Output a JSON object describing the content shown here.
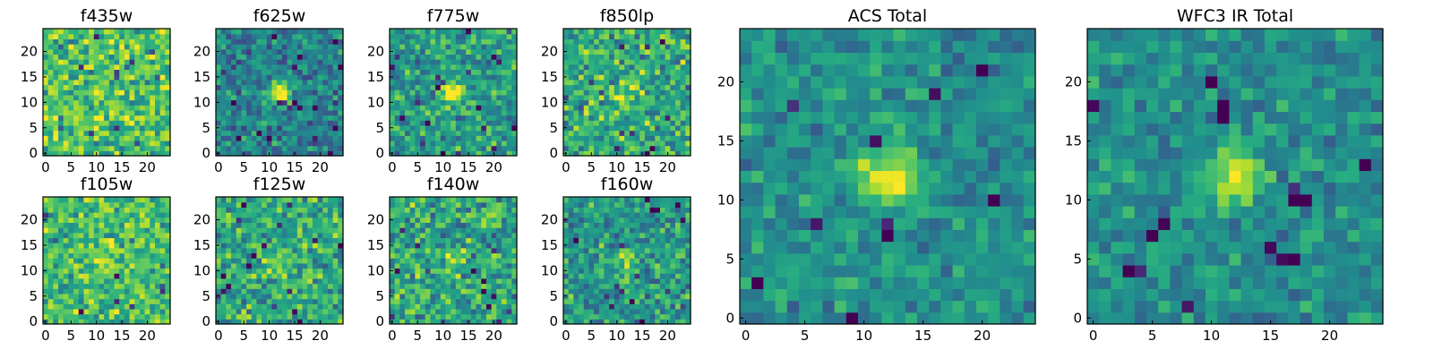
{
  "chart_data": [
    {
      "type": "heatmap",
      "title": "f435w",
      "grid_size": 25,
      "xlim": [
        0,
        25
      ],
      "ylim": [
        0,
        25
      ],
      "xticks": [
        0,
        5,
        10,
        15,
        20
      ],
      "yticks": [
        0,
        5,
        10,
        15,
        20
      ],
      "colormap": "viridis",
      "blob": {
        "x": 12.5,
        "y": 12.5,
        "strength": 0.0
      },
      "base_level": 0.72,
      "noise": 0.22,
      "seed": 11
    },
    {
      "type": "heatmap",
      "title": "f625w",
      "grid_size": 25,
      "xlim": [
        0,
        25
      ],
      "ylim": [
        0,
        25
      ],
      "xticks": [
        0,
        5,
        10,
        15,
        20
      ],
      "yticks": [
        0,
        5,
        10,
        15,
        20
      ],
      "colormap": "viridis",
      "blob": {
        "x": 12.5,
        "y": 12.5,
        "strength": 0.55
      },
      "base_level": 0.45,
      "noise": 0.18,
      "seed": 23
    },
    {
      "type": "heatmap",
      "title": "f775w",
      "grid_size": 25,
      "xlim": [
        0,
        25
      ],
      "ylim": [
        0,
        25
      ],
      "xticks": [
        0,
        5,
        10,
        15,
        20
      ],
      "yticks": [
        0,
        5,
        10,
        15,
        20
      ],
      "colormap": "viridis",
      "blob": {
        "x": 12.5,
        "y": 12.5,
        "strength": 0.5
      },
      "base_level": 0.55,
      "noise": 0.2,
      "seed": 37
    },
    {
      "type": "heatmap",
      "title": "f850lp",
      "grid_size": 25,
      "xlim": [
        0,
        25
      ],
      "ylim": [
        0,
        25
      ],
      "xticks": [
        0,
        5,
        10,
        15,
        20
      ],
      "yticks": [
        0,
        5,
        10,
        15,
        20
      ],
      "colormap": "viridis",
      "blob": {
        "x": 12.5,
        "y": 12.5,
        "strength": 0.25
      },
      "base_level": 0.62,
      "noise": 0.22,
      "seed": 41
    },
    {
      "type": "heatmap",
      "title": "f105w",
      "grid_size": 25,
      "xlim": [
        0,
        25
      ],
      "ylim": [
        0,
        25
      ],
      "xticks": [
        0,
        5,
        10,
        15,
        20
      ],
      "yticks": [
        0,
        5,
        10,
        15,
        20
      ],
      "colormap": "viridis",
      "blob": {
        "x": 12.5,
        "y": 12.5,
        "strength": 0.2
      },
      "base_level": 0.7,
      "noise": 0.2,
      "seed": 53
    },
    {
      "type": "heatmap",
      "title": "f125w",
      "grid_size": 25,
      "xlim": [
        0,
        25
      ],
      "ylim": [
        0,
        25
      ],
      "xticks": [
        0,
        5,
        10,
        15,
        20
      ],
      "yticks": [
        0,
        5,
        10,
        15,
        20
      ],
      "colormap": "viridis",
      "blob": {
        "x": 12.5,
        "y": 12.5,
        "strength": 0.3
      },
      "base_level": 0.62,
      "noise": 0.2,
      "seed": 67
    },
    {
      "type": "heatmap",
      "title": "f140w",
      "grid_size": 25,
      "xlim": [
        0,
        25
      ],
      "ylim": [
        0,
        25
      ],
      "xticks": [
        0,
        5,
        10,
        15,
        20
      ],
      "yticks": [
        0,
        5,
        10,
        15,
        20
      ],
      "colormap": "viridis",
      "blob": {
        "x": 12.5,
        "y": 12.5,
        "strength": 0.2
      },
      "base_level": 0.6,
      "noise": 0.22,
      "seed": 71
    },
    {
      "type": "heatmap",
      "title": "f160w",
      "grid_size": 25,
      "xlim": [
        0,
        25
      ],
      "ylim": [
        0,
        25
      ],
      "xticks": [
        0,
        5,
        10,
        15,
        20
      ],
      "yticks": [
        0,
        5,
        10,
        15,
        20
      ],
      "colormap": "viridis",
      "blob": {
        "x": 12.5,
        "y": 12.5,
        "strength": 0.25
      },
      "base_level": 0.55,
      "noise": 0.2,
      "seed": 83
    },
    {
      "type": "heatmap",
      "title": "ACS Total",
      "grid_size": 25,
      "xlim": [
        0,
        25
      ],
      "ylim": [
        0,
        25
      ],
      "xticks": [
        0,
        5,
        10,
        15,
        20
      ],
      "yticks": [
        0,
        5,
        10,
        15,
        20
      ],
      "colormap": "viridis",
      "blob": {
        "x": 12.5,
        "y": 12.5,
        "strength": 0.55
      },
      "base_level": 0.5,
      "noise": 0.14,
      "seed": 97
    },
    {
      "type": "heatmap",
      "title": "WFC3 IR Total",
      "grid_size": 25,
      "xlim": [
        0,
        25
      ],
      "ylim": [
        0,
        25
      ],
      "xticks": [
        0,
        5,
        10,
        15,
        20
      ],
      "yticks": [
        0,
        5,
        10,
        15,
        20
      ],
      "colormap": "viridis",
      "blob": {
        "x": 12.5,
        "y": 12.5,
        "strength": 0.5
      },
      "base_level": 0.5,
      "noise": 0.14,
      "seed": 101
    }
  ]
}
